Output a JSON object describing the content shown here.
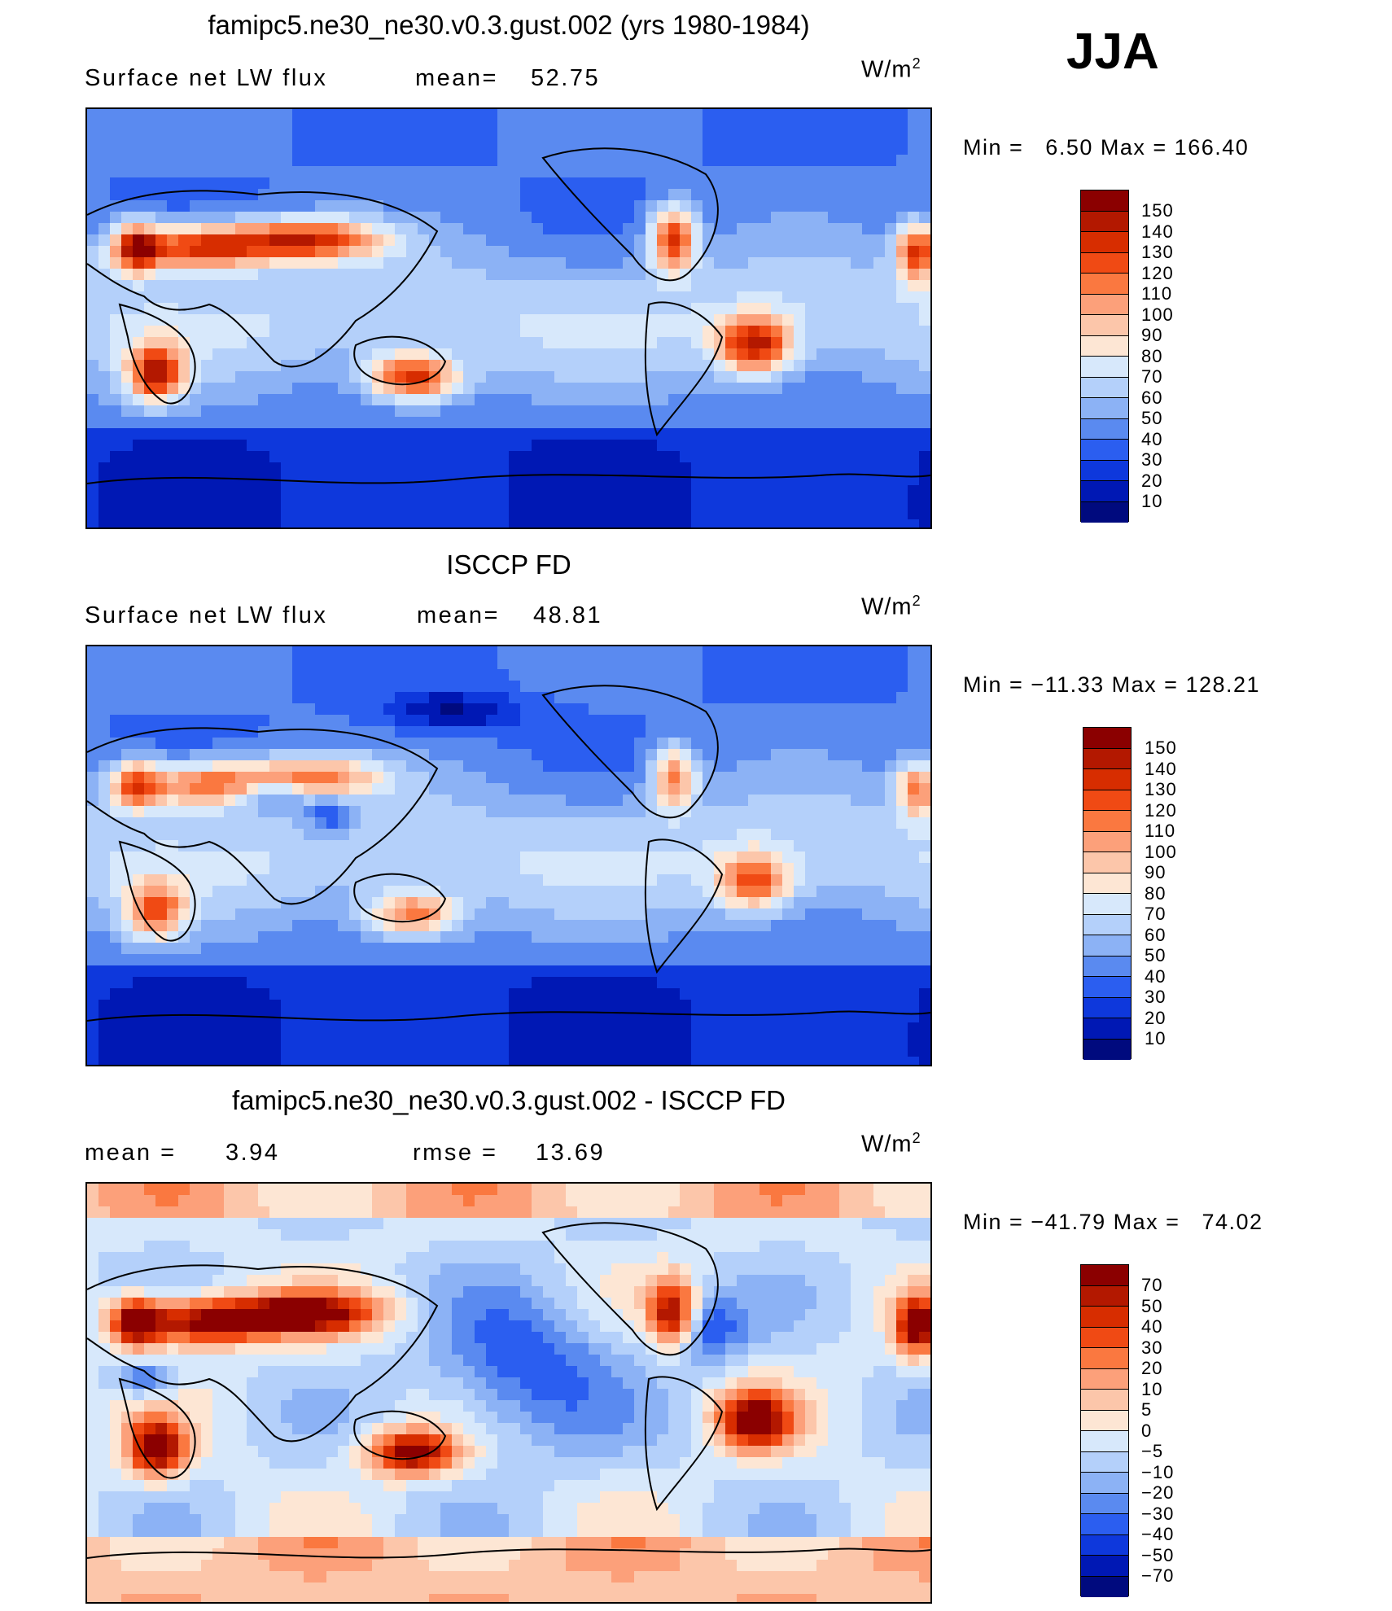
{
  "season": "JJA",
  "panels": [
    {
      "title": "famipc5.ne30_ne30.v0.3.gust.002 (yrs 1980-1984)",
      "left_label": "Surface net LW flux",
      "mid_label": "mean=",
      "mid_value": "52.75",
      "units": "W/m",
      "units_sup": "2",
      "min_label": "Min =",
      "min_value": "6.50",
      "max_label": "Max =",
      "max_value": "166.40",
      "levels": [
        "150",
        "140",
        "130",
        "120",
        "110",
        "100",
        "90",
        "80",
        "70",
        "60",
        "50",
        "40",
        "30",
        "20",
        "10"
      ],
      "colors": [
        "#8b0000",
        "#b31800",
        "#d72d00",
        "#f04a14",
        "#fa7840",
        "#fca07a",
        "#fcc6aa",
        "#fde6d4",
        "#d7e8fb",
        "#b4d0fa",
        "#8cb2f5",
        "#5a8af0",
        "#2b5ef0",
        "#0e38dc",
        "#0018b4",
        "#000a7e"
      ],
      "field": "model"
    },
    {
      "title": "ISCCP FD",
      "left_label": "Surface net LW flux",
      "mid_label": "mean=",
      "mid_value": "48.81",
      "units": "W/m",
      "units_sup": "2",
      "min_label": "Min =",
      "min_value": "−11.33",
      "max_label": "Max =",
      "max_value": "128.21",
      "levels": [
        "150",
        "140",
        "130",
        "120",
        "110",
        "100",
        "90",
        "80",
        "70",
        "60",
        "50",
        "40",
        "30",
        "20",
        "10"
      ],
      "colors": [
        "#8b0000",
        "#b31800",
        "#d72d00",
        "#f04a14",
        "#fa7840",
        "#fca07a",
        "#fcc6aa",
        "#fde6d4",
        "#d7e8fb",
        "#b4d0fa",
        "#8cb2f5",
        "#5a8af0",
        "#2b5ef0",
        "#0e38dc",
        "#0018b4",
        "#000a7e"
      ],
      "field": "obs"
    },
    {
      "title": "famipc5.ne30_ne30.v0.3.gust.002 - ISCCP FD",
      "left_label": "mean =",
      "left_value": "3.94",
      "mid_label": "rmse =",
      "mid_value": "13.69",
      "units": "W/m",
      "units_sup": "2",
      "min_label": "Min =",
      "min_value": "−41.79",
      "max_label": "Max =",
      "max_value": "74.02",
      "levels": [
        "70",
        "50",
        "40",
        "30",
        "20",
        "10",
        "5",
        "0",
        "−5",
        "−10",
        "−20",
        "−30",
        "−40",
        "−50",
        "−70"
      ],
      "colors": [
        "#8b0000",
        "#b31800",
        "#d72d00",
        "#f04a14",
        "#fa7840",
        "#fca07a",
        "#fcc6aa",
        "#fde6d4",
        "#d7e8fb",
        "#b4d0fa",
        "#8cb2f5",
        "#5a8af0",
        "#2b5ef0",
        "#0e38dc",
        "#0018b4",
        "#000a7e"
      ],
      "field": "diff"
    }
  ]
}
